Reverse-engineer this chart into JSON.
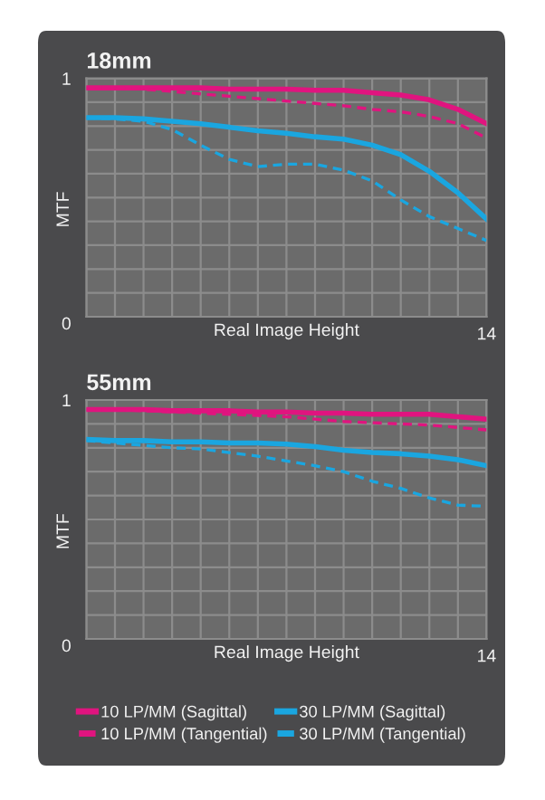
{
  "chart_data": [
    {
      "type": "line",
      "title": "18mm",
      "xlabel": "Real Image Height",
      "ylabel": "MTF",
      "categories": [
        null,
        null,
        null,
        null,
        null,
        null,
        null,
        null,
        null,
        null,
        null,
        null,
        null,
        null,
        "14"
      ],
      "ylim": [
        0,
        1
      ],
      "yticks": [
        0,
        {
          "value": 0.1,
          "label": null
        },
        {
          "value": 0.2,
          "label": null
        },
        {
          "value": 0.3,
          "label": null
        },
        {
          "value": 0.4,
          "label": null
        },
        {
          "value": 0.5,
          "label": null
        },
        {
          "value": 0.6,
          "label": null
        },
        {
          "value": 0.7,
          "label": null
        },
        {
          "value": 0.8,
          "label": null
        },
        {
          "value": 0.9,
          "label": null
        },
        1
      ],
      "grid": true,
      "marker": "none",
      "series": [
        {
          "color": "#e0147f",
          "line_style": "solid",
          "values": [
            0.96,
            0.96,
            0.96,
            0.96,
            0.96,
            0.955,
            0.955,
            0.955,
            0.95,
            0.95,
            0.94,
            0.93,
            0.91,
            0.87,
            0.81
          ]
        },
        {
          "color": "#e0147f",
          "line_style": "dashed",
          "values": [
            0.96,
            0.96,
            0.955,
            0.945,
            0.935,
            0.925,
            0.915,
            0.905,
            0.895,
            0.885,
            0.87,
            0.86,
            0.84,
            0.81,
            0.75
          ]
        },
        {
          "color": "#1aa6e0",
          "line_style": "solid",
          "values": [
            0.835,
            0.835,
            0.83,
            0.82,
            0.81,
            0.795,
            0.78,
            0.77,
            0.755,
            0.745,
            0.72,
            0.68,
            0.61,
            0.52,
            0.41
          ]
        },
        {
          "color": "#1aa6e0",
          "line_style": "dashed",
          "values": [
            0.835,
            0.83,
            0.82,
            0.785,
            0.72,
            0.66,
            0.63,
            0.64,
            0.64,
            0.615,
            0.57,
            0.49,
            0.42,
            0.37,
            0.32
          ]
        }
      ]
    },
    {
      "type": "line",
      "title": "55mm",
      "xlabel": "Real Image Height",
      "ylabel": "MTF",
      "categories": [
        null,
        null,
        null,
        null,
        null,
        null,
        null,
        null,
        null,
        null,
        null,
        null,
        null,
        null,
        "14"
      ],
      "ylim": [
        0,
        1
      ],
      "yticks": [
        0,
        {
          "value": 0.1,
          "label": null
        },
        {
          "value": 0.2,
          "label": null
        },
        {
          "value": 0.3,
          "label": null
        },
        {
          "value": 0.4,
          "label": null
        },
        {
          "value": 0.5,
          "label": null
        },
        {
          "value": 0.6,
          "label": null
        },
        {
          "value": 0.7,
          "label": null
        },
        {
          "value": 0.8,
          "label": null
        },
        {
          "value": 0.9,
          "label": null
        },
        1
      ],
      "grid": true,
      "marker": "none",
      "legend": "bottom",
      "series": [
        {
          "name": "10 LP/MM (Sagittal)",
          "color": "#e0147f",
          "line_style": "solid",
          "values": [
            0.96,
            0.96,
            0.96,
            0.955,
            0.955,
            0.955,
            0.95,
            0.95,
            0.945,
            0.945,
            0.94,
            0.94,
            0.94,
            0.93,
            0.92
          ]
        },
        {
          "name": "10 LP/MM (Tangential)",
          "color": "#e0147f",
          "line_style": "dashed",
          "values": [
            0.96,
            0.96,
            0.955,
            0.95,
            0.945,
            0.94,
            0.935,
            0.93,
            0.92,
            0.91,
            0.905,
            0.9,
            0.895,
            0.885,
            0.875
          ]
        },
        {
          "name": "30 LP/MM (Sagittal)",
          "color": "#1aa6e0",
          "line_style": "solid",
          "values": [
            0.835,
            0.83,
            0.83,
            0.825,
            0.825,
            0.82,
            0.82,
            0.815,
            0.805,
            0.79,
            0.78,
            0.775,
            0.765,
            0.75,
            0.725
          ]
        },
        {
          "name": "30 LP/MM (Tangential)",
          "color": "#1aa6e0",
          "line_style": "dashed",
          "values": [
            0.83,
            0.82,
            0.81,
            0.8,
            0.795,
            0.78,
            0.765,
            0.745,
            0.725,
            0.7,
            0.66,
            0.63,
            0.59,
            0.56,
            0.555
          ]
        }
      ]
    }
  ]
}
